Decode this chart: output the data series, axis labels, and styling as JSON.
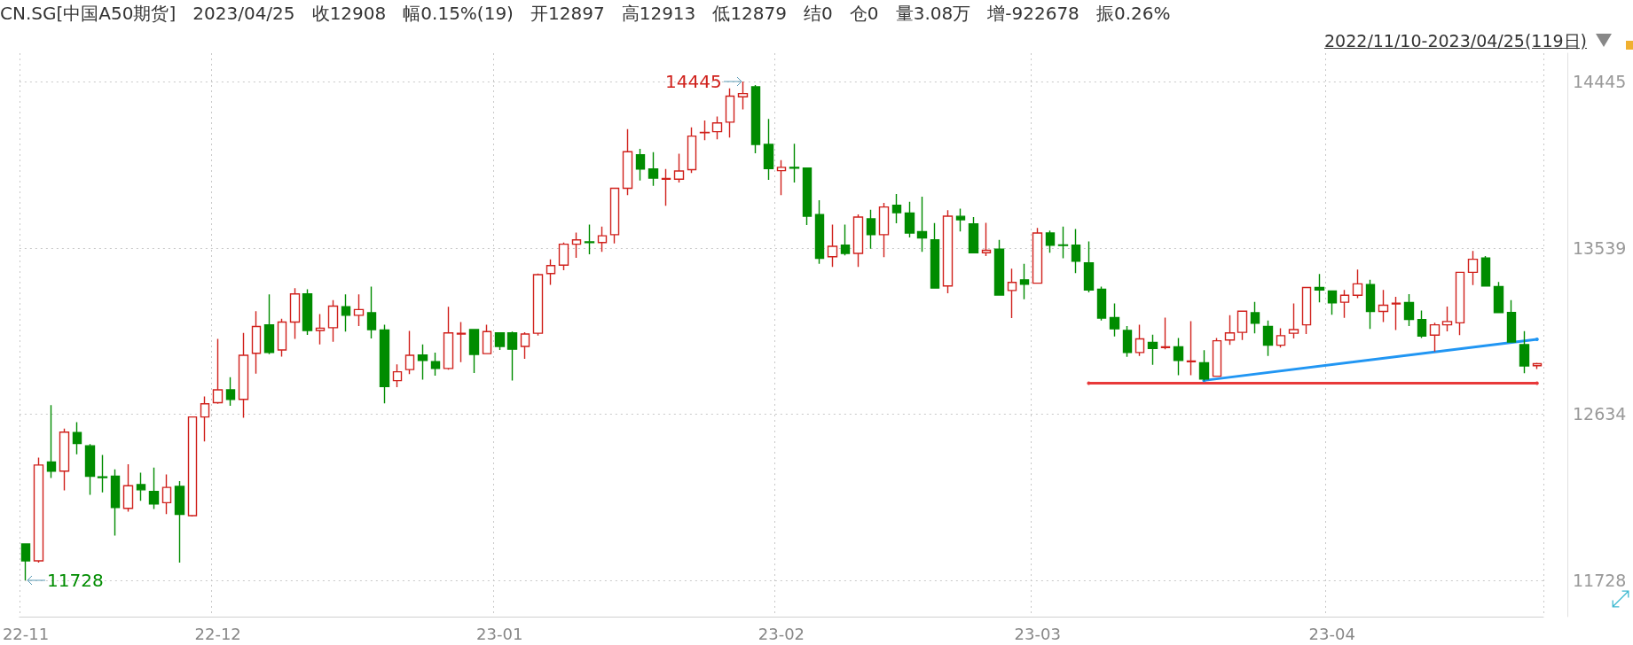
{
  "chart_data": {
    "type": "candlestick",
    "title": "CN.SG[中国A50期货]   2023/04/25   收12908   幅0.15%(19)   开12897   高12913   低12879   结0   仓0   量3.08万   增-922678   振0.26%",
    "subtitle": "2022/11/10-2023/04/25(119日)",
    "annotations": [
      "14445",
      "11728"
    ],
    "categories": [
      "22-11",
      null,
      null,
      null,
      null,
      null,
      null,
      null,
      null,
      null,
      null,
      null,
      null,
      null,
      null,
      "22-12",
      null,
      null,
      null,
      null,
      null,
      null,
      null,
      null,
      null,
      null,
      null,
      null,
      null,
      null,
      null,
      null,
      null,
      null,
      null,
      null,
      null,
      "23-01",
      null,
      null,
      null,
      null,
      null,
      null,
      null,
      null,
      null,
      null,
      null,
      null,
      null,
      null,
      null,
      null,
      null,
      null,
      null,
      null,
      null,
      "23-02",
      null,
      null,
      null,
      null,
      null,
      null,
      null,
      null,
      null,
      null,
      null,
      null,
      null,
      null,
      null,
      null,
      null,
      null,
      null,
      "23-03",
      null,
      null,
      null,
      null,
      null,
      null,
      null,
      null,
      null,
      null,
      null,
      null,
      null,
      null,
      null,
      null,
      null,
      null,
      null,
      null,
      null,
      null,
      "23-04",
      null,
      null,
      null,
      null,
      null,
      null,
      null,
      null,
      null,
      null,
      null,
      null,
      null,
      null,
      null,
      null
    ],
    "ohlc": [
      [
        11926,
        11930,
        11728,
        11834
      ],
      [
        11834,
        12397,
        11825,
        12356
      ],
      [
        12373,
        12683,
        12286,
        12323
      ],
      [
        12323,
        12554,
        12218,
        12535
      ],
      [
        12533,
        12590,
        12415,
        12474
      ],
      [
        12461,
        12470,
        12194,
        12295
      ],
      [
        12292,
        12411,
        12207,
        12288
      ],
      [
        12295,
        12332,
        11972,
        12125
      ],
      [
        12120,
        12360,
        12102,
        12243
      ],
      [
        12249,
        12314,
        12161,
        12221
      ],
      [
        12212,
        12342,
        12116,
        12144
      ],
      [
        12151,
        12305,
        12089,
        12234
      ],
      [
        12240,
        12268,
        11825,
        12087
      ],
      [
        12080,
        12620,
        12075,
        12618
      ],
      [
        12618,
        12729,
        12484,
        12690
      ],
      [
        12696,
        13043,
        12690,
        12766
      ],
      [
        12766,
        12834,
        12679,
        12714
      ],
      [
        12714,
        13076,
        12614,
        12954
      ],
      [
        12965,
        13194,
        12854,
        13111
      ],
      [
        13120,
        13286,
        12960,
        12969
      ],
      [
        12983,
        13153,
        12947,
        13135
      ],
      [
        13135,
        13320,
        13043,
        13288
      ],
      [
        13288,
        13314,
        13065,
        13089
      ],
      [
        13089,
        13179,
        13013,
        13102
      ],
      [
        13104,
        13255,
        13028,
        13222
      ],
      [
        13218,
        13286,
        13083,
        13172
      ],
      [
        13172,
        13286,
        13113,
        13203
      ],
      [
        13186,
        13328,
        13046,
        13094
      ],
      [
        13092,
        13120,
        12692,
        12784
      ],
      [
        12816,
        12904,
        12780,
        12864
      ],
      [
        12876,
        13087,
        12852,
        12954
      ],
      [
        12956,
        13013,
        12821,
        12926
      ],
      [
        12919,
        12969,
        12843,
        12882
      ],
      [
        12882,
        13218,
        12876,
        13076
      ],
      [
        13070,
        13135,
        12917,
        13074
      ],
      [
        13094,
        13094,
        12858,
        12959
      ],
      [
        12963,
        13120,
        12963,
        13083
      ],
      [
        13076,
        13076,
        12983,
        13002
      ],
      [
        13076,
        13083,
        12816,
        12987
      ],
      [
        13002,
        13079,
        12935,
        13070
      ],
      [
        13074,
        13399,
        13061,
        13393
      ],
      [
        13399,
        13476,
        13338,
        13443
      ],
      [
        13445,
        13568,
        13417,
        13559
      ],
      [
        13559,
        13622,
        13485,
        13583
      ],
      [
        13572,
        13666,
        13504,
        13568
      ],
      [
        13568,
        13655,
        13518,
        13605
      ],
      [
        13611,
        13867,
        13563,
        13864
      ],
      [
        13864,
        14186,
        13827,
        14063
      ],
      [
        14046,
        14079,
        13906,
        13969
      ],
      [
        13969,
        14061,
        13877,
        13919
      ],
      [
        13913,
        13969,
        13769,
        13917
      ],
      [
        13913,
        14052,
        13895,
        13958
      ],
      [
        13965,
        14196,
        13947,
        14148
      ],
      [
        14166,
        14233,
        14126,
        14168
      ],
      [
        14172,
        14255,
        14131,
        14220
      ],
      [
        14224,
        14408,
        14140,
        14366
      ],
      [
        14362,
        14445,
        14293,
        14380
      ],
      [
        14417,
        14426,
        14054,
        14103
      ],
      [
        14103,
        14242,
        13910,
        13971
      ],
      [
        13960,
        14017,
        13827,
        13978
      ],
      [
        13978,
        14107,
        13895,
        13974
      ],
      [
        13974,
        13974,
        13664,
        13712
      ],
      [
        13720,
        13799,
        13452,
        13482
      ],
      [
        13491,
        13666,
        13435,
        13548
      ],
      [
        13554,
        13666,
        13498,
        13509
      ],
      [
        13509,
        13721,
        13435,
        13707
      ],
      [
        13697,
        13747,
        13535,
        13611
      ],
      [
        13611,
        13784,
        13489,
        13762
      ],
      [
        13771,
        13832,
        13673,
        13731
      ],
      [
        13729,
        13790,
        13596,
        13620
      ],
      [
        13628,
        13818,
        13518,
        13593
      ],
      [
        13583,
        13674,
        13320,
        13320
      ],
      [
        13332,
        13744,
        13292,
        13712
      ],
      [
        13711,
        13753,
        13629,
        13692
      ],
      [
        13670,
        13707,
        13513,
        13513
      ],
      [
        13513,
        13676,
        13495,
        13526
      ],
      [
        13532,
        13583,
        13282,
        13282
      ],
      [
        13307,
        13426,
        13157,
        13351
      ],
      [
        13365,
        13452,
        13259,
        13341
      ],
      [
        13347,
        13648,
        13347,
        13620
      ],
      [
        13620,
        13633,
        13513,
        13554
      ],
      [
        13555,
        13655,
        13482,
        13552
      ],
      [
        13554,
        13642,
        13402,
        13467
      ],
      [
        13458,
        13574,
        13297,
        13310
      ],
      [
        13314,
        13328,
        13144,
        13157
      ],
      [
        13159,
        13236,
        13057,
        13098
      ],
      [
        13089,
        13113,
        12946,
        12969
      ],
      [
        12969,
        13120,
        12950,
        13043
      ],
      [
        13024,
        13066,
        12902,
        12991
      ],
      [
        12996,
        13159,
        12987,
        13000
      ],
      [
        13000,
        13048,
        12845,
        12926
      ],
      [
        12919,
        13140,
        12845,
        12923
      ],
      [
        12913,
        12982,
        12817,
        12825
      ],
      [
        12840,
        13048,
        12840,
        13033
      ],
      [
        13037,
        13172,
        13011,
        13076
      ],
      [
        13079,
        13194,
        13037,
        13194
      ],
      [
        13186,
        13245,
        13074,
        13129
      ],
      [
        13111,
        13144,
        12950,
        13009
      ],
      [
        13009,
        13101,
        12996,
        13061
      ],
      [
        13074,
        13236,
        13046,
        13094
      ],
      [
        13120,
        13323,
        13070,
        13323
      ],
      [
        13323,
        13397,
        13242,
        13310
      ],
      [
        13304,
        13304,
        13175,
        13240
      ],
      [
        13243,
        13310,
        13158,
        13281
      ],
      [
        13281,
        13421,
        13265,
        13343
      ],
      [
        13339,
        13365,
        13097,
        13193
      ],
      [
        13193,
        13310,
        13135,
        13227
      ],
      [
        13234,
        13272,
        13091,
        13238
      ],
      [
        13242,
        13287,
        13113,
        13149
      ],
      [
        13149,
        13198,
        13048,
        13059
      ],
      [
        13064,
        13131,
        12974,
        13120
      ],
      [
        13120,
        13220,
        13084,
        13138
      ],
      [
        13131,
        13406,
        13064,
        13406
      ],
      [
        13406,
        13522,
        13336,
        13477
      ],
      [
        13484,
        13495,
        13328,
        13332
      ],
      [
        13328,
        13354,
        13187,
        13187
      ],
      [
        13187,
        13254,
        13026,
        13026
      ],
      [
        13012,
        13086,
        12856,
        12896
      ],
      [
        12897,
        12913,
        12879,
        12908
      ]
    ],
    "series": [
      {
        "type": "line",
        "color": "#2196f3",
        "values": [
          null,
          null,
          null,
          null,
          null,
          null,
          null,
          null,
          null,
          null,
          null,
          null,
          null,
          null,
          null,
          null,
          null,
          null,
          null,
          null,
          null,
          null,
          null,
          null,
          null,
          null,
          null,
          null,
          null,
          null,
          null,
          null,
          null,
          null,
          null,
          null,
          null,
          null,
          null,
          null,
          null,
          null,
          null,
          null,
          null,
          null,
          null,
          null,
          null,
          null,
          null,
          null,
          null,
          null,
          null,
          null,
          null,
          null,
          null,
          null,
          null,
          null,
          null,
          null,
          null,
          null,
          null,
          null,
          null,
          null,
          null,
          null,
          null,
          null,
          null,
          null,
          null,
          null,
          null,
          null,
          null,
          null,
          null,
          null,
          null,
          null,
          null,
          null,
          null,
          null,
          null,
          null,
          12817,
          null,
          null,
          null,
          null,
          null,
          null,
          null,
          null,
          null,
          null,
          null,
          null,
          null,
          null,
          null,
          null,
          null,
          null,
          null,
          null,
          null,
          null,
          null,
          null,
          null,
          13041
        ]
      },
      {
        "type": "line",
        "color": "#e8393a",
        "values": [
          null,
          null,
          null,
          null,
          null,
          null,
          null,
          null,
          null,
          null,
          null,
          null,
          null,
          null,
          null,
          null,
          null,
          null,
          null,
          null,
          null,
          null,
          null,
          null,
          null,
          null,
          null,
          null,
          null,
          null,
          null,
          null,
          null,
          null,
          null,
          null,
          null,
          null,
          null,
          null,
          null,
          null,
          null,
          null,
          null,
          null,
          null,
          null,
          null,
          null,
          null,
          null,
          null,
          null,
          null,
          null,
          null,
          null,
          null,
          null,
          null,
          null,
          null,
          null,
          null,
          null,
          null,
          null,
          null,
          null,
          null,
          null,
          null,
          null,
          null,
          null,
          null,
          null,
          null,
          null,
          null,
          null,
          null,
          12802,
          null,
          null,
          null,
          null,
          null,
          null,
          null,
          null,
          null,
          null,
          null,
          null,
          null,
          null,
          null,
          null,
          null,
          null,
          null,
          null,
          null,
          null,
          null,
          null,
          null,
          null,
          null,
          null,
          null,
          null,
          null,
          null,
          null,
          null,
          12802
        ]
      }
    ],
    "ylim": [
      11530,
      14600
    ],
    "yticks": [
      14445,
      13539,
      12634,
      11728
    ],
    "grid": true
  }
}
